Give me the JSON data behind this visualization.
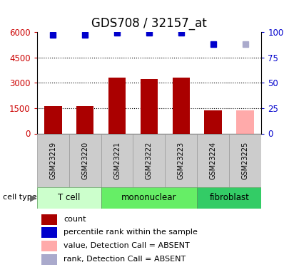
{
  "title": "GDS708 / 32157_at",
  "samples": [
    "GSM23219",
    "GSM23220",
    "GSM23221",
    "GSM23222",
    "GSM23223",
    "GSM23224",
    "GSM23225"
  ],
  "counts": [
    1620,
    1630,
    3320,
    3210,
    3320,
    1360,
    1360
  ],
  "absent_flags": [
    false,
    false,
    false,
    false,
    false,
    false,
    true
  ],
  "rank_values": [
    97,
    97,
    99,
    99,
    99,
    88,
    88
  ],
  "rank_absent": [
    false,
    false,
    false,
    false,
    false,
    false,
    true
  ],
  "ylim_left": [
    0,
    6000
  ],
  "ylim_right": [
    0,
    100
  ],
  "yticks_left": [
    0,
    1500,
    3000,
    4500,
    6000
  ],
  "ytick_labels_left": [
    "0",
    "1500",
    "3000",
    "4500",
    "6000"
  ],
  "yticks_right": [
    0,
    25,
    50,
    75,
    100
  ],
  "ytick_labels_right": [
    "0",
    "25",
    "50",
    "75",
    "100%"
  ],
  "cell_groups": [
    {
      "label": "T cell",
      "start": 0,
      "end": 2,
      "color": "#ccffcc"
    },
    {
      "label": "mononuclear",
      "start": 2,
      "end": 5,
      "color": "#66ee66"
    },
    {
      "label": "fibroblast",
      "start": 5,
      "end": 7,
      "color": "#33cc66"
    }
  ],
  "bar_color_present": "#aa0000",
  "bar_color_absent": "#ffaaaa",
  "rank_color_present": "#0000cc",
  "rank_color_absent": "#aaaacc",
  "bar_width": 0.55,
  "legend_items": [
    {
      "label": "count",
      "color": "#aa0000"
    },
    {
      "label": "percentile rank within the sample",
      "color": "#0000cc"
    },
    {
      "label": "value, Detection Call = ABSENT",
      "color": "#ffaaaa"
    },
    {
      "label": "rank, Detection Call = ABSENT",
      "color": "#aaaacc"
    }
  ],
  "xlabel_group": "cell type",
  "sample_box_color": "#cccccc",
  "title_fontsize": 12,
  "tick_fontsize": 8.5,
  "legend_fontsize": 8,
  "sample_fontsize": 7,
  "group_fontsize": 8.5
}
